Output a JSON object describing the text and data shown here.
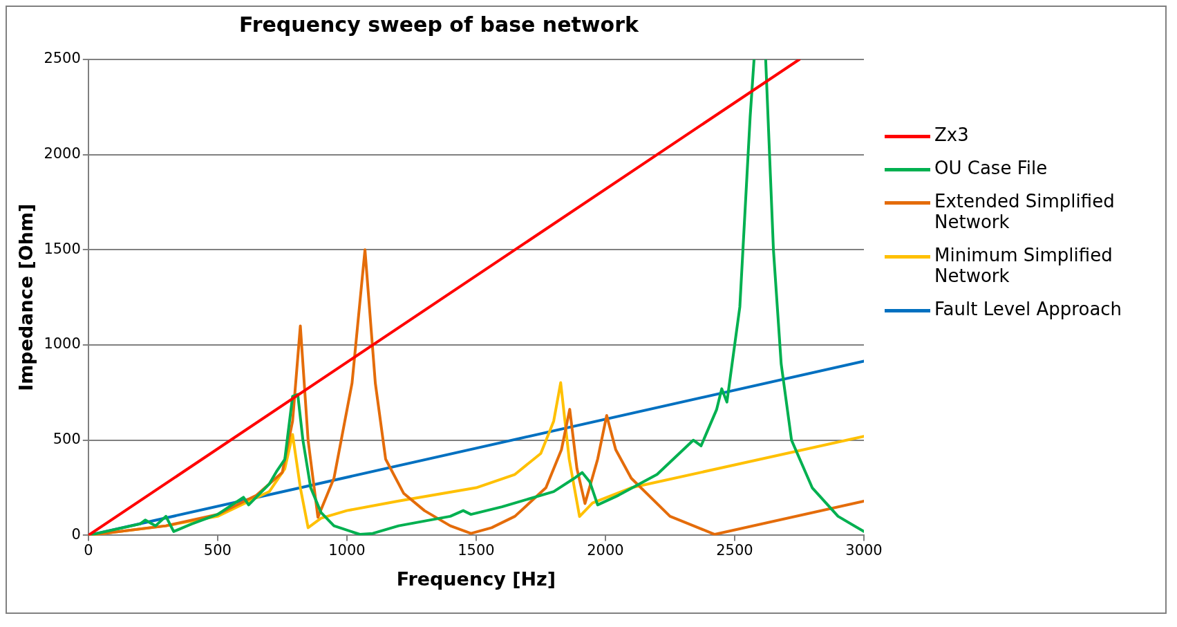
{
  "chart_data": {
    "type": "line",
    "title": "Frequency sweep of base network",
    "xlabel": "Frequency [Hz]",
    "ylabel": "Impedance [Ohm]",
    "xlim": [
      0,
      3000
    ],
    "xticks": [
      0,
      500,
      1000,
      1500,
      2000,
      2500,
      3000
    ],
    "ylim": [
      0,
      2500
    ],
    "yticks": [
      0,
      500,
      1000,
      1500,
      2000,
      2500
    ],
    "grid": "y",
    "legend": "right",
    "marker": "none",
    "line_style": "solid",
    "series": [
      {
        "name": "Zx3",
        "color": "#ff0000",
        "x": [
          0,
          2750
        ],
        "values": [
          0,
          2500
        ]
      },
      {
        "name": "OU Case File",
        "color": "#00b050",
        "x": [
          0,
          100,
          200,
          220,
          260,
          300,
          330,
          400,
          500,
          600,
          620,
          700,
          730,
          760,
          790,
          810,
          830,
          860,
          900,
          950,
          1050,
          1100,
          1200,
          1400,
          1450,
          1480,
          1600,
          1800,
          1880,
          1910,
          1940,
          1970,
          2050,
          2200,
          2340,
          2370,
          2430,
          2450,
          2470,
          2520,
          2560,
          2575,
          2600,
          2620,
          2650,
          2680,
          2720,
          2800,
          2900,
          3000
        ],
        "values": [
          0,
          30,
          60,
          80,
          50,
          100,
          20,
          60,
          110,
          200,
          160,
          270,
          340,
          400,
          730,
          740,
          500,
          250,
          120,
          50,
          5,
          10,
          50,
          100,
          130,
          110,
          150,
          230,
          300,
          330,
          280,
          160,
          210,
          320,
          500,
          470,
          660,
          770,
          700,
          1200,
          2200,
          2500,
          null,
          2500,
          1500,
          900,
          500,
          250,
          100,
          20
        ]
      },
      {
        "name": "Extended Simplified Network",
        "color": "#e46c0a",
        "x": [
          0,
          300,
          500,
          650,
          750,
          790,
          820,
          850,
          888,
          950,
          1020,
          1070,
          1110,
          1150,
          1220,
          1300,
          1400,
          1480,
          1560,
          1650,
          1770,
          1830,
          1862,
          1890,
          1921,
          1970,
          2005,
          2040,
          2100,
          2250,
          2423,
          3000
        ],
        "values": [
          0,
          50,
          110,
          210,
          330,
          600,
          1100,
          500,
          95,
          300,
          800,
          1500,
          800,
          400,
          220,
          130,
          50,
          10,
          40,
          100,
          250,
          450,
          662,
          350,
          167,
          400,
          630,
          450,
          300,
          100,
          5,
          180
        ]
      },
      {
        "name": "Minimum Simplified Network",
        "color": "#ffc000",
        "x": [
          0,
          300,
          500,
          700,
          760,
          790,
          820,
          850,
          900,
          1000,
          1200,
          1500,
          1650,
          1750,
          1800,
          1827,
          1860,
          1900,
          1950,
          2100,
          2500,
          3000
        ],
        "values": [
          0,
          50,
          100,
          230,
          350,
          530,
          250,
          40,
          90,
          130,
          180,
          250,
          320,
          430,
          600,
          802,
          400,
          99,
          170,
          250,
          370,
          520
        ]
      },
      {
        "name": "Fault Level Approach",
        "color": "#0070c0",
        "x": [
          0,
          3000
        ],
        "values": [
          0,
          915
        ]
      }
    ]
  }
}
